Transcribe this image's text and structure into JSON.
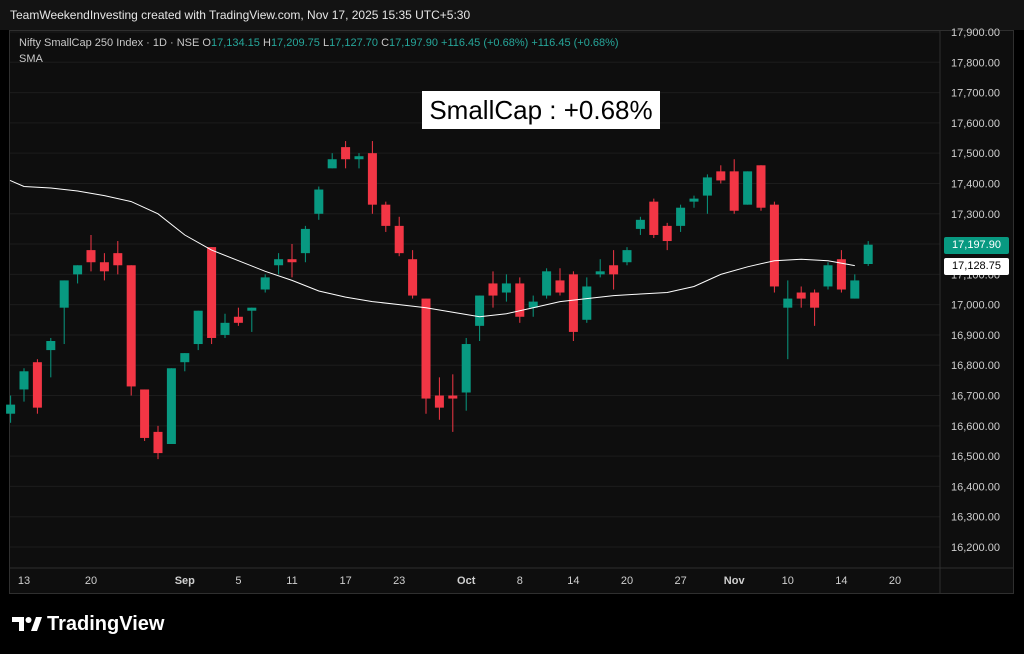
{
  "topbar": {
    "text": "TeamWeekendInvesting created with TradingView.com, Nov 17, 2025 15:35 UTC+5:30"
  },
  "header": {
    "symbol": "Nifty SmallCap 250 Index · 1D · NSE",
    "o_label": "O",
    "o_value": "17,134.15",
    "h_label": "H",
    "h_value": "17,209.75",
    "l_label": "L",
    "l_value": "17,127.70",
    "c_label": "C",
    "c_value": "17,197.90",
    "change1": "+116.45 (+0.68%)",
    "change2": "+116.45 (+0.68%)",
    "indicator": "SMA"
  },
  "annotation": "SmallCap : +0.68%",
  "price_labels": {
    "last": "17,197.90",
    "sma": "17,128.75"
  },
  "footer": {
    "brand": "TradingView"
  },
  "colors": {
    "up": "#089981",
    "down": "#f23645",
    "sma": "#ffffff",
    "background": "#0e0e0e",
    "grid": "#1c1c1c"
  },
  "chart_data": {
    "type": "candlestick",
    "title": "Nifty SmallCap 250 Index · 1D · NSE",
    "ylim": [
      16150,
      17950
    ],
    "y_ticks": [
      "17,900.00",
      "17,800.00",
      "17,700.00",
      "17,600.00",
      "17,500.00",
      "17,400.00",
      "17,300.00",
      "17,200.00",
      "17,100.00",
      "17,000.00",
      "16,900.00",
      "16,800.00",
      "16,700.00",
      "16,600.00",
      "16,500.00",
      "16,400.00",
      "16,300.00",
      "16,200.00"
    ],
    "x_ticks": [
      "13",
      "20",
      "Sep",
      "5",
      "11",
      "17",
      "23",
      "Oct",
      "8",
      "14",
      "20",
      "27",
      "Nov",
      "10",
      "14",
      "20"
    ],
    "x_tick_slots": [
      0,
      5,
      12,
      16,
      20,
      24,
      28,
      33,
      37,
      41,
      45,
      49,
      53,
      57,
      61,
      65
    ],
    "candles": [
      {
        "slot": -1,
        "o": 16640,
        "h": 16700,
        "l": 16610,
        "c": 16670
      },
      {
        "slot": 0,
        "o": 16720,
        "h": 16790,
        "l": 16680,
        "c": 16780
      },
      {
        "slot": 1,
        "o": 16810,
        "h": 16820,
        "l": 16640,
        "c": 16660
      },
      {
        "slot": 2,
        "o": 16850,
        "h": 16890,
        "l": 16760,
        "c": 16880
      },
      {
        "slot": 3,
        "o": 16990,
        "h": 17080,
        "l": 16870,
        "c": 17080
      },
      {
        "slot": 4,
        "o": 17100,
        "h": 17130,
        "l": 17070,
        "c": 17130
      },
      {
        "slot": 5,
        "o": 17180,
        "h": 17230,
        "l": 17110,
        "c": 17140
      },
      {
        "slot": 6,
        "o": 17140,
        "h": 17170,
        "l": 17080,
        "c": 17110
      },
      {
        "slot": 7,
        "o": 17170,
        "h": 17210,
        "l": 17100,
        "c": 17130
      },
      {
        "slot": 8,
        "o": 17130,
        "h": 17120,
        "l": 16700,
        "c": 16730
      },
      {
        "slot": 9,
        "o": 16720,
        "h": 16720,
        "l": 16550,
        "c": 16560
      },
      {
        "slot": 10,
        "o": 16580,
        "h": 16600,
        "l": 16490,
        "c": 16510
      },
      {
        "slot": 11,
        "o": 16540,
        "h": 16790,
        "l": 16540,
        "c": 16790
      },
      {
        "slot": 12,
        "o": 16810,
        "h": 16840,
        "l": 16780,
        "c": 16840
      },
      {
        "slot": 13,
        "o": 16870,
        "h": 16970,
        "l": 16850,
        "c": 16980
      },
      {
        "slot": 14,
        "o": 17190,
        "h": 17190,
        "l": 16870,
        "c": 16890
      },
      {
        "slot": 15,
        "o": 16900,
        "h": 16970,
        "l": 16890,
        "c": 16940
      },
      {
        "slot": 16,
        "o": 16960,
        "h": 16990,
        "l": 16930,
        "c": 16940
      },
      {
        "slot": 17,
        "o": 16980,
        "h": 16990,
        "l": 16910,
        "c": 16990
      },
      {
        "slot": 18,
        "o": 17050,
        "h": 17100,
        "l": 17040,
        "c": 17090
      },
      {
        "slot": 19,
        "o": 17130,
        "h": 17170,
        "l": 17100,
        "c": 17150
      },
      {
        "slot": 20,
        "o": 17150,
        "h": 17200,
        "l": 17090,
        "c": 17140
      },
      {
        "slot": 21,
        "o": 17170,
        "h": 17260,
        "l": 17140,
        "c": 17250
      },
      {
        "slot": 22,
        "o": 17300,
        "h": 17390,
        "l": 17280,
        "c": 17380
      },
      {
        "slot": 23,
        "o": 17450,
        "h": 17500,
        "l": 17450,
        "c": 17480
      },
      {
        "slot": 24,
        "o": 17520,
        "h": 17540,
        "l": 17450,
        "c": 17480
      },
      {
        "slot": 25,
        "o": 17480,
        "h": 17500,
        "l": 17450,
        "c": 17490
      },
      {
        "slot": 26,
        "o": 17500,
        "h": 17540,
        "l": 17300,
        "c": 17330
      },
      {
        "slot": 27,
        "o": 17330,
        "h": 17340,
        "l": 17240,
        "c": 17260
      },
      {
        "slot": 28,
        "o": 17260,
        "h": 17290,
        "l": 17160,
        "c": 17170
      },
      {
        "slot": 29,
        "o": 17150,
        "h": 17180,
        "l": 17020,
        "c": 17030
      },
      {
        "slot": 30,
        "o": 17020,
        "h": 17020,
        "l": 16640,
        "c": 16690
      },
      {
        "slot": 31,
        "o": 16700,
        "h": 16760,
        "l": 16620,
        "c": 16660
      },
      {
        "slot": 32,
        "o": 16700,
        "h": 16770,
        "l": 16580,
        "c": 16690
      },
      {
        "slot": 33,
        "o": 16710,
        "h": 16890,
        "l": 16650,
        "c": 16870
      },
      {
        "slot": 34,
        "o": 16930,
        "h": 17030,
        "l": 16880,
        "c": 17030
      },
      {
        "slot": 35,
        "o": 17070,
        "h": 17110,
        "l": 16990,
        "c": 17030
      },
      {
        "slot": 36,
        "o": 17040,
        "h": 17100,
        "l": 17010,
        "c": 17070
      },
      {
        "slot": 37,
        "o": 17070,
        "h": 17090,
        "l": 16940,
        "c": 16960
      },
      {
        "slot": 38,
        "o": 16990,
        "h": 17030,
        "l": 16960,
        "c": 17010
      },
      {
        "slot": 39,
        "o": 17030,
        "h": 17120,
        "l": 17020,
        "c": 17110
      },
      {
        "slot": 40,
        "o": 17080,
        "h": 17120,
        "l": 17030,
        "c": 17040
      },
      {
        "slot": 41,
        "o": 17100,
        "h": 17110,
        "l": 16880,
        "c": 16910
      },
      {
        "slot": 42,
        "o": 16950,
        "h": 17090,
        "l": 16940,
        "c": 17060
      },
      {
        "slot": 43,
        "o": 17100,
        "h": 17150,
        "l": 17090,
        "c": 17110
      },
      {
        "slot": 44,
        "o": 17130,
        "h": 17180,
        "l": 17050,
        "c": 17100
      },
      {
        "slot": 45,
        "o": 17140,
        "h": 17190,
        "l": 17130,
        "c": 17180
      },
      {
        "slot": 46,
        "o": 17250,
        "h": 17290,
        "l": 17230,
        "c": 17280
      },
      {
        "slot": 47,
        "o": 17340,
        "h": 17350,
        "l": 17220,
        "c": 17230
      },
      {
        "slot": 48,
        "o": 17260,
        "h": 17270,
        "l": 17180,
        "c": 17210
      },
      {
        "slot": 49,
        "o": 17260,
        "h": 17330,
        "l": 17240,
        "c": 17320
      },
      {
        "slot": 50,
        "o": 17340,
        "h": 17360,
        "l": 17320,
        "c": 17350
      },
      {
        "slot": 51,
        "o": 17360,
        "h": 17430,
        "l": 17300,
        "c": 17420
      },
      {
        "slot": 52,
        "o": 17440,
        "h": 17460,
        "l": 17400,
        "c": 17410
      },
      {
        "slot": 53,
        "o": 17440,
        "h": 17480,
        "l": 17300,
        "c": 17310
      },
      {
        "slot": 54,
        "o": 17330,
        "h": 17440,
        "l": 17330,
        "c": 17440
      },
      {
        "slot": 55,
        "o": 17460,
        "h": 17460,
        "l": 17310,
        "c": 17320
      },
      {
        "slot": 56,
        "o": 17330,
        "h": 17340,
        "l": 17040,
        "c": 17060
      },
      {
        "slot": 57,
        "o": 16990,
        "h": 17080,
        "l": 16820,
        "c": 17020
      },
      {
        "slot": 58,
        "o": 17040,
        "h": 17060,
        "l": 16990,
        "c": 17020
      },
      {
        "slot": 59,
        "o": 17040,
        "h": 17050,
        "l": 16930,
        "c": 16990
      },
      {
        "slot": 60,
        "o": 17060,
        "h": 17140,
        "l": 17050,
        "c": 17130
      },
      {
        "slot": 61,
        "o": 17150,
        "h": 17180,
        "l": 17040,
        "c": 17050
      },
      {
        "slot": 62,
        "o": 17020,
        "h": 17100,
        "l": 17020,
        "c": 17080
      },
      {
        "slot": 63,
        "o": 17134.15,
        "h": 17209.75,
        "l": 17127.7,
        "c": 17197.9
      }
    ],
    "sma": {
      "name": "SMA",
      "slots": [
        -2,
        0,
        2,
        4,
        6,
        8,
        10,
        12,
        14,
        16,
        18,
        20,
        22,
        24,
        26,
        28,
        30,
        32,
        34,
        36,
        38,
        40,
        42,
        44,
        46,
        48,
        50,
        52,
        54,
        56,
        58,
        60,
        62
      ],
      "values": [
        17410,
        17390,
        17385,
        17375,
        17360,
        17340,
        17300,
        17230,
        17180,
        17145,
        17110,
        17080,
        17045,
        17025,
        17010,
        17000,
        16990,
        16975,
        16960,
        16970,
        16990,
        17010,
        17020,
        17030,
        17035,
        17040,
        17060,
        17100,
        17125,
        17145,
        17150,
        17145,
        17128.75
      ]
    }
  }
}
